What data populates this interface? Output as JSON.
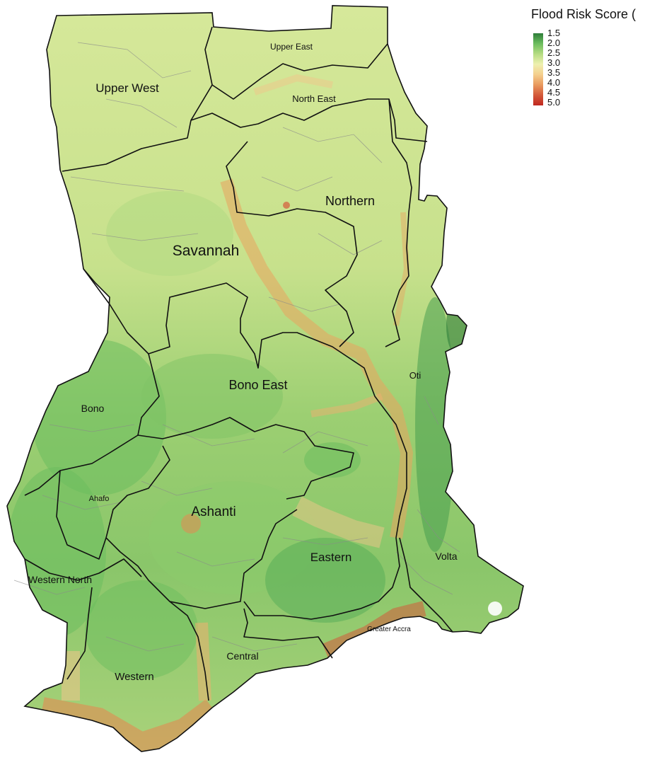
{
  "legend": {
    "title": "Flood Risk Score (",
    "ticks": [
      "1.5",
      "2.0",
      "2.5",
      "3.0",
      "3.5",
      "4.0",
      "4.5",
      "5.0"
    ],
    "scale_colors": [
      "#2e7d3a",
      "#6cbd5e",
      "#b5dc82",
      "#eef0b0",
      "#f4cf8e",
      "#e99a5e",
      "#d45a3a",
      "#c0271f"
    ]
  },
  "regions": [
    {
      "name": "Upper East"
    },
    {
      "name": "Upper West"
    },
    {
      "name": "North East"
    },
    {
      "name": "Northern"
    },
    {
      "name": "Savannah"
    },
    {
      "name": "Oti"
    },
    {
      "name": "Bono East"
    },
    {
      "name": "Bono"
    },
    {
      "name": "Ahafo"
    },
    {
      "name": "Ashanti"
    },
    {
      "name": "Volta"
    },
    {
      "name": "Eastern"
    },
    {
      "name": "Western North"
    },
    {
      "name": "Greater Accra"
    },
    {
      "name": "Central"
    },
    {
      "name": "Western"
    }
  ]
}
